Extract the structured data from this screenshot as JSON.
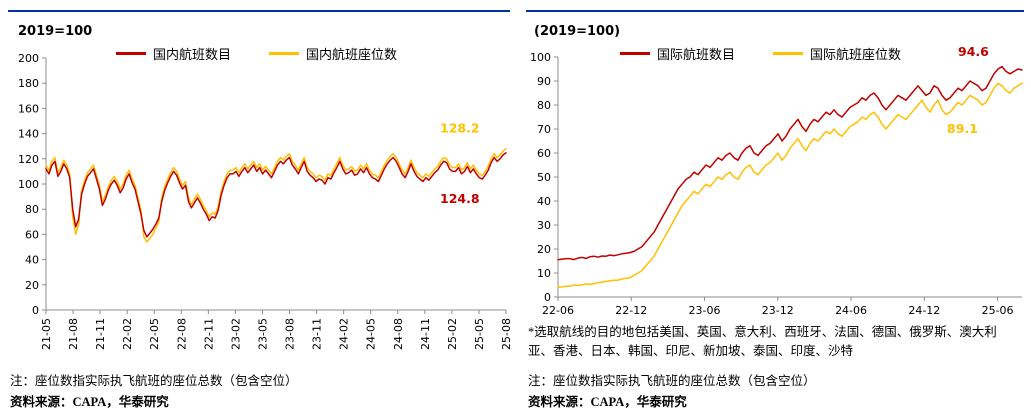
{
  "colors": {
    "red": "#C00000",
    "yellow": "#FFC000",
    "axis": "#8C8C8C",
    "topline": "#0033A0"
  },
  "footer_left": {
    "note": "注：座位数指实际执飞航班的座位总数（包含空位）",
    "source": "资料来源：CAPA，华泰研究"
  },
  "footer_right": {
    "footnote": "*选取航线的目的地包括美国、英国、意大利、西班牙、法国、德国、俄罗斯、澳大利亚、香港、日本、韩国、印尼、新加坡、泰国、印度、沙特",
    "note": "注：座位数指实际执飞航班的座位总数（包含空位）",
    "source": "资料来源：CAPA，华泰研究"
  },
  "chart_data": [
    {
      "id": "domestic",
      "type": "line",
      "title": "2019=100",
      "legend": [
        {
          "label": "国内航班数目",
          "color": "#C00000"
        },
        {
          "label": "国内航班座位数",
          "color": "#FFC000"
        }
      ],
      "ylim": [
        0,
        200
      ],
      "ytick_step": 20,
      "x_span_months": 51,
      "x_tick_step_months": 3,
      "x_label_rotated": true,
      "x_tick_labels": [
        "21-05",
        "21-08",
        "21-11",
        "22-02",
        "22-05",
        "22-08",
        "22-11",
        "23-02",
        "23-05",
        "23-08",
        "23-11",
        "24-02",
        "24-05",
        "24-08",
        "24-11",
        "25-02",
        "25-05",
        "25-08"
      ],
      "series": [
        {
          "sid": "domestic-seats",
          "name": "国内航班座位数",
          "color": "#FFC000",
          "end_label": {
            "text": "128.2",
            "dx": -66,
            "dy": -16
          },
          "values": [
            115,
            111,
            118,
            121,
            109,
            113,
            119,
            115,
            108,
            74,
            60,
            68,
            95,
            103,
            109,
            112,
            115,
            107,
            99,
            86,
            91,
            98,
            103,
            106,
            102,
            96,
            100,
            107,
            111,
            104,
            99,
            89,
            79,
            58,
            54,
            57,
            60,
            65,
            70,
            89,
            98,
            104,
            109,
            113,
            110,
            104,
            99,
            102,
            89,
            84,
            88,
            92,
            88,
            83,
            79,
            74,
            77,
            76,
            82,
            94,
            102,
            108,
            111,
            111,
            113,
            109,
            113,
            116,
            112,
            115,
            118,
            113,
            116,
            111,
            114,
            111,
            108,
            113,
            118,
            121,
            119,
            122,
            124,
            118,
            115,
            111,
            116,
            121,
            113,
            110,
            108,
            105,
            107,
            106,
            103,
            108,
            107,
            112,
            116,
            121,
            115,
            111,
            112,
            114,
            110,
            111,
            115,
            112,
            116,
            111,
            108,
            107,
            105,
            110,
            115,
            119,
            122,
            124,
            121,
            116,
            111,
            108,
            113,
            119,
            113,
            109,
            107,
            105,
            108,
            106,
            109,
            112,
            114,
            118,
            121,
            120,
            115,
            113,
            113,
            116,
            111,
            113,
            117,
            112,
            115,
            111,
            108,
            107,
            110,
            114,
            120,
            124,
            121,
            123,
            126,
            128.2
          ]
        },
        {
          "sid": "domestic-flights",
          "name": "国内航班数目",
          "color": "#C00000",
          "end_label": {
            "text": "124.8",
            "dx": -66,
            "dy": 50
          },
          "values": [
            112,
            108,
            115,
            118,
            106,
            110,
            116,
            112,
            105,
            80,
            66,
            72,
            92,
            100,
            106,
            109,
            112,
            104,
            96,
            83,
            88,
            95,
            100,
            103,
            99,
            93,
            97,
            104,
            108,
            101,
            96,
            86,
            76,
            63,
            58,
            61,
            64,
            68,
            73,
            86,
            95,
            101,
            106,
            110,
            107,
            101,
            96,
            99,
            86,
            81,
            85,
            89,
            85,
            80,
            76,
            71,
            74,
            73,
            79,
            91,
            99,
            105,
            108,
            108,
            110,
            106,
            110,
            113,
            109,
            112,
            115,
            110,
            113,
            108,
            111,
            108,
            105,
            110,
            115,
            118,
            116,
            119,
            121,
            115,
            112,
            108,
            113,
            118,
            110,
            107,
            105,
            102,
            104,
            103,
            100,
            105,
            104,
            109,
            113,
            118,
            112,
            108,
            109,
            111,
            107,
            108,
            112,
            109,
            113,
            108,
            105,
            104,
            102,
            107,
            112,
            116,
            119,
            121,
            118,
            113,
            108,
            105,
            110,
            116,
            110,
            106,
            104,
            102,
            105,
            103,
            106,
            109,
            111,
            115,
            118,
            117,
            112,
            110,
            110,
            113,
            108,
            110,
            114,
            109,
            112,
            108,
            105,
            104,
            107,
            111,
            117,
            121,
            118,
            120,
            123,
            124.8
          ]
        }
      ]
    },
    {
      "id": "international",
      "type": "line",
      "title": "(2019=100)",
      "legend": [
        {
          "label": "国际航班数目",
          "color": "#C00000"
        },
        {
          "label": "国际航班座位数",
          "color": "#FFC000"
        }
      ],
      "ylim": [
        0,
        100
      ],
      "ytick_step": 10,
      "x_span_months": 38,
      "x_tick_step_months": 6,
      "x_label_rotated": false,
      "x_tick_labels": [
        "22-06",
        "22-12",
        "23-06",
        "23-12",
        "24-06",
        "24-12",
        "25-06"
      ],
      "series": [
        {
          "sid": "international-seats",
          "name": "国际航班座位数",
          "color": "#FFC000",
          "end_label": {
            "text": "89.1",
            "dx": -75,
            "dy": 50
          },
          "values": [
            4,
            4.2,
            4.5,
            4.5,
            5,
            4.8,
            5,
            5.5,
            5.2,
            5.5,
            6,
            6.2,
            6.5,
            6.8,
            7,
            7,
            7.5,
            7.8,
            8,
            9,
            10,
            11,
            13,
            15,
            17,
            20,
            23,
            26,
            29,
            32,
            35,
            38,
            40,
            42,
            44,
            43,
            45,
            47,
            46,
            48,
            50,
            49,
            51,
            52,
            50,
            49,
            52,
            54,
            55,
            52,
            51,
            53,
            55,
            56,
            58,
            60,
            57,
            59,
            62,
            64,
            66,
            63,
            61,
            64,
            66,
            65,
            67,
            69,
            68,
            70,
            68,
            67,
            69,
            71,
            72,
            73,
            75,
            74,
            76,
            77,
            75,
            72,
            70,
            72,
            74,
            76,
            75,
            74,
            76,
            78,
            80,
            82,
            79,
            77,
            80,
            82,
            78,
            76,
            77,
            79,
            81,
            80,
            82,
            84,
            83,
            82,
            80,
            81,
            84,
            87,
            89,
            88,
            86,
            85,
            87,
            88,
            89.1
          ]
        },
        {
          "sid": "international-flights",
          "name": "国际航班数目",
          "color": "#C00000",
          "end_label": {
            "text": "94.6",
            "dx": -64,
            "dy": -14
          },
          "values": [
            15.5,
            15.8,
            16,
            16,
            15.6,
            16.2,
            16.5,
            16.1,
            16.8,
            17,
            16.6,
            17.1,
            17,
            17.5,
            17.2,
            17.6,
            18,
            18.2,
            18.5,
            19,
            20,
            21,
            23,
            25,
            27,
            30,
            33,
            36,
            39,
            42,
            45,
            47,
            49,
            50,
            52,
            51,
            53,
            55,
            54,
            56,
            58,
            57,
            59,
            60,
            58,
            57,
            60,
            62,
            63,
            60,
            59,
            61,
            63,
            64,
            66,
            68,
            65,
            67,
            70,
            72,
            74,
            71,
            69,
            72,
            74,
            73,
            75,
            77,
            76,
            78,
            76,
            75,
            77,
            79,
            80,
            81,
            83,
            82,
            84,
            85,
            83,
            80,
            78,
            80,
            82,
            84,
            83,
            82,
            84,
            86,
            88,
            86,
            84,
            85,
            88,
            87,
            84,
            82,
            83,
            85,
            87,
            86,
            88,
            90,
            89,
            88,
            86,
            87,
            90,
            93,
            95,
            96,
            94,
            93,
            94,
            95,
            94.6
          ]
        }
      ]
    }
  ]
}
